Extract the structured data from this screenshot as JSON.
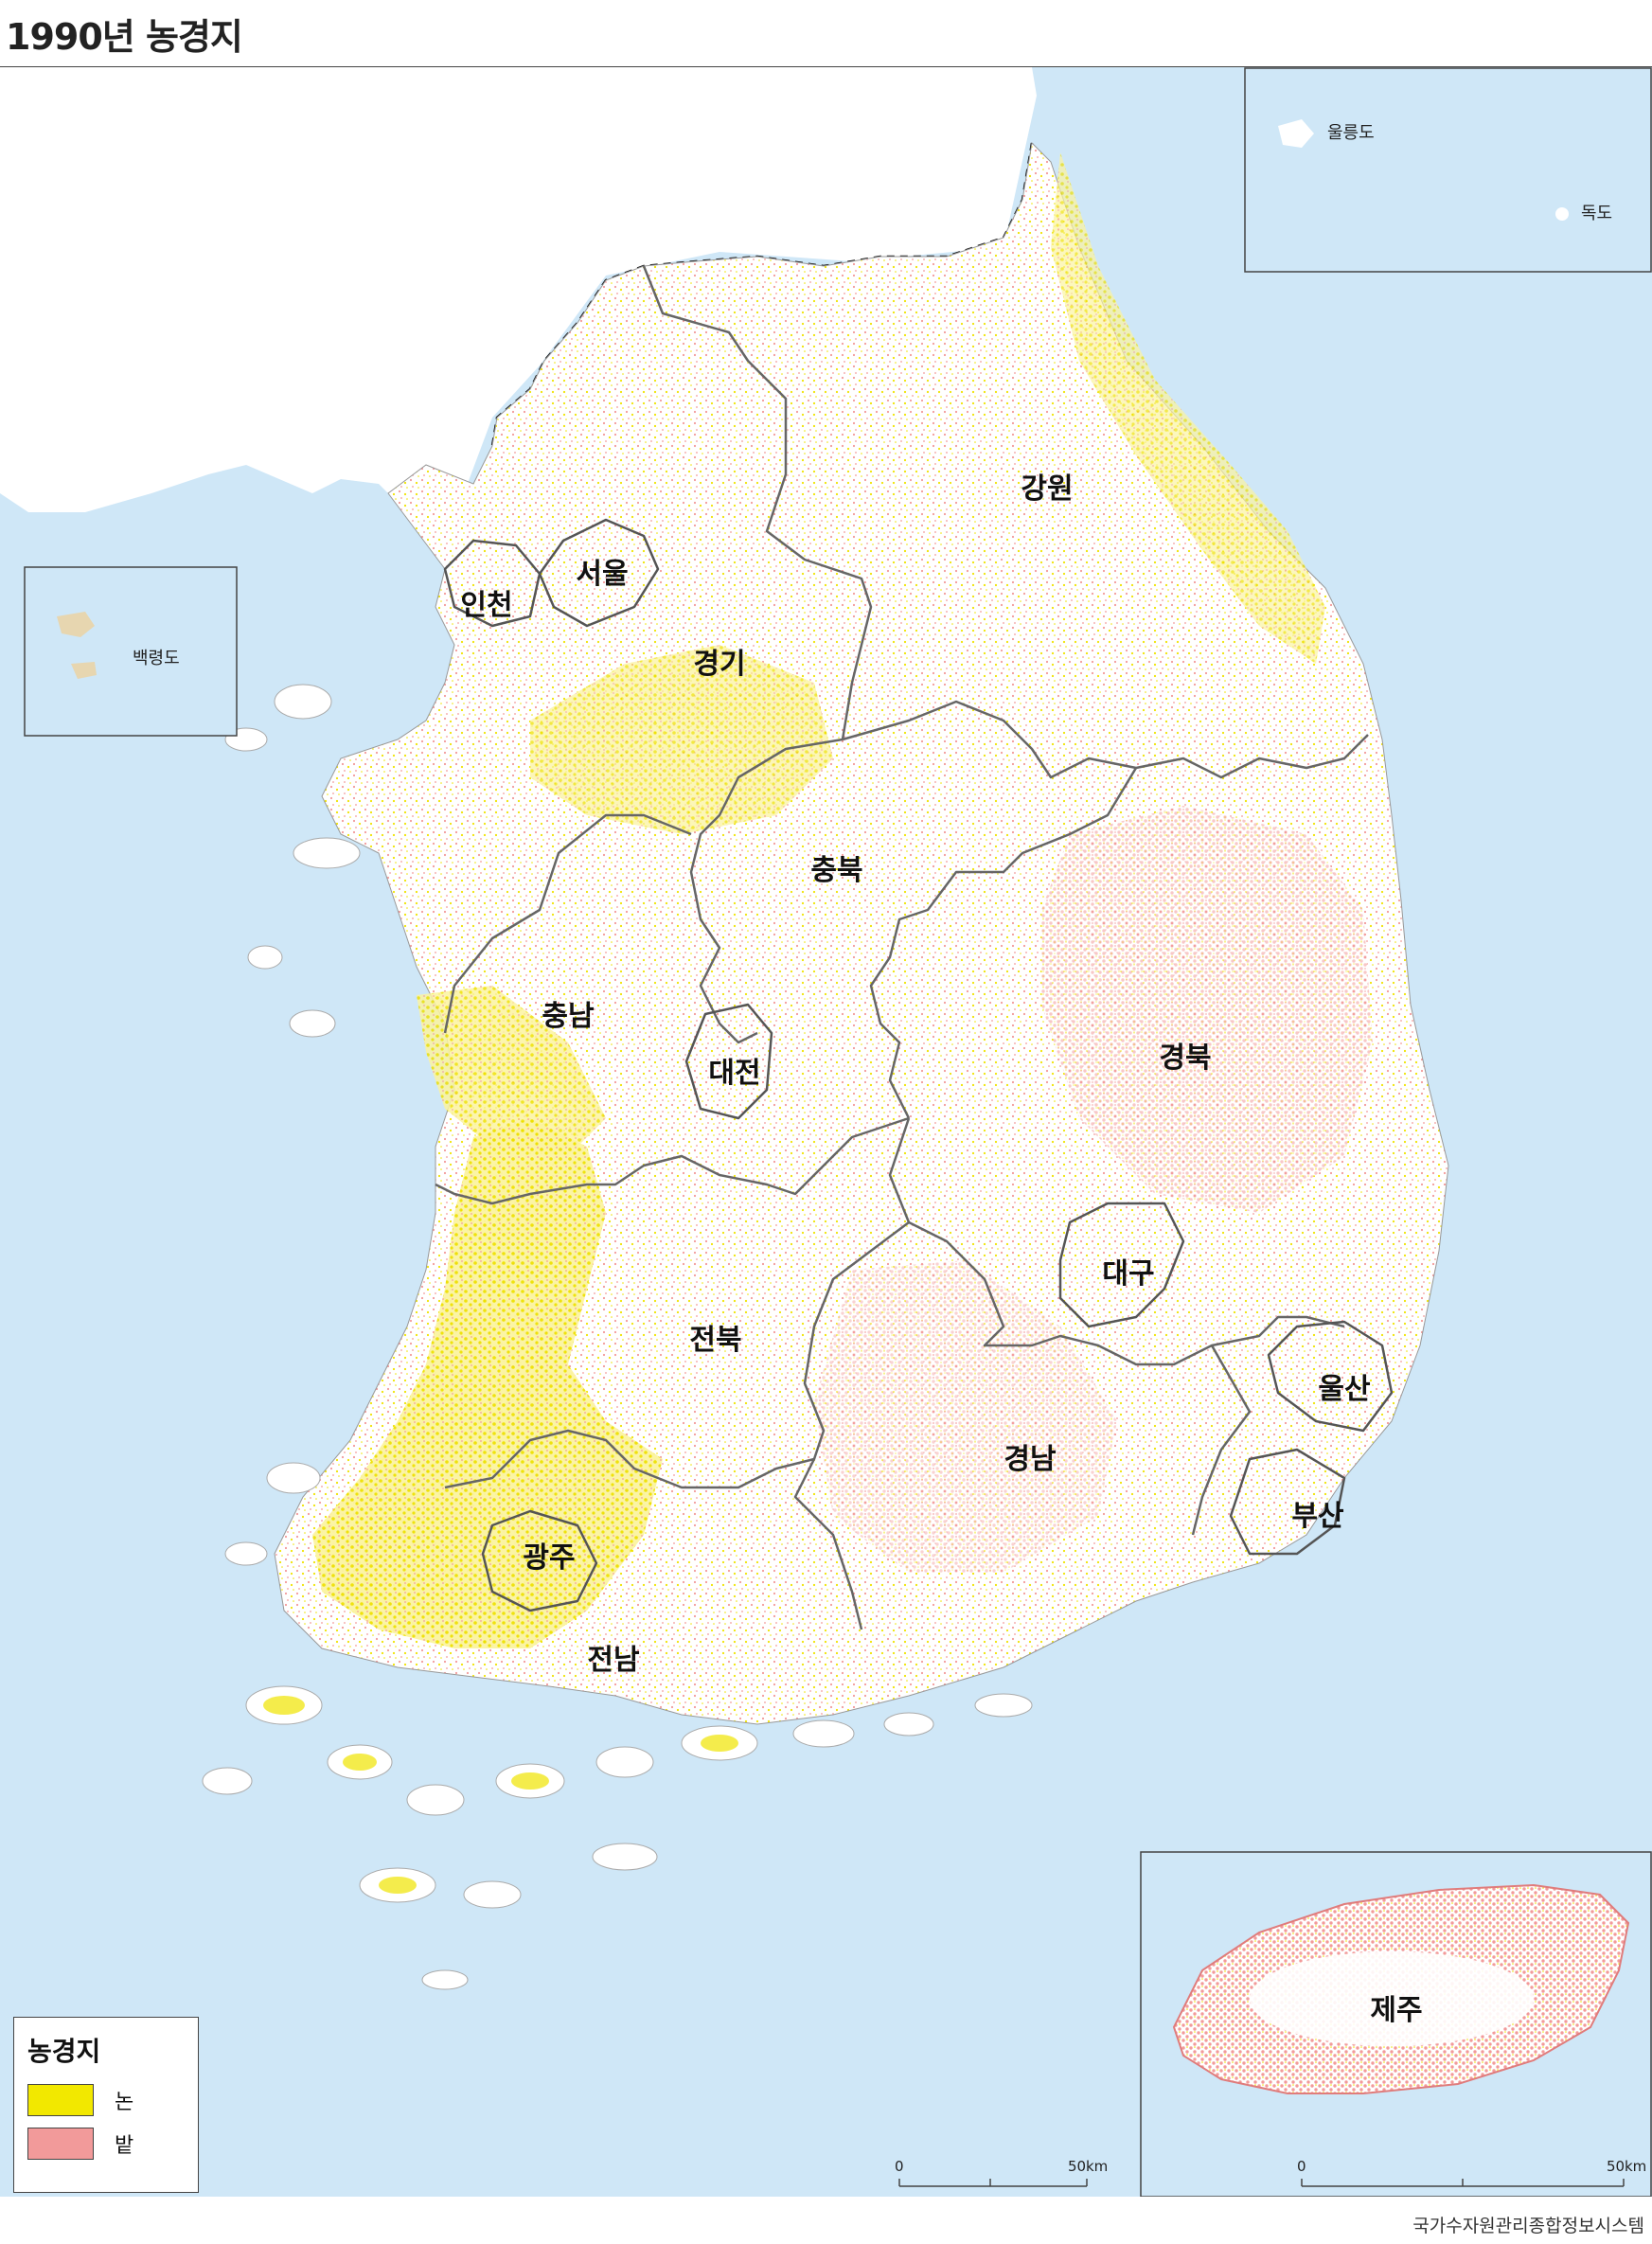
{
  "title": "1990년 농경지",
  "source": "국가수자원관리종합정보시스템",
  "colors": {
    "sea": "#cfe7f7",
    "land": "#ffffff",
    "paddy": "#f2e800",
    "field": "#f29a9a",
    "boundary": "#666666"
  },
  "regions": {
    "gangwon": "강원",
    "seoul": "서울",
    "incheon": "인천",
    "gyeonggi": "경기",
    "chungbuk": "충북",
    "chungnam": "충남",
    "daejeon": "대전",
    "gyeongbuk": "경북",
    "daegu": "대구",
    "jeonbuk": "전북",
    "ulsan": "울산",
    "gyeongnam": "경남",
    "busan": "부산",
    "gwangju": "광주",
    "jeonnam": "전남",
    "jeju": "제주"
  },
  "islands": {
    "baengnyeong": "백령도",
    "ulleung": "울릉도",
    "dokdo": "독도"
  },
  "legend": {
    "title": "농경지",
    "items": [
      {
        "label": "논",
        "color": "#f2e800"
      },
      {
        "label": "밭",
        "color": "#f29a9a"
      }
    ]
  },
  "scale": {
    "start": "0",
    "end": "50",
    "unit": "km"
  }
}
